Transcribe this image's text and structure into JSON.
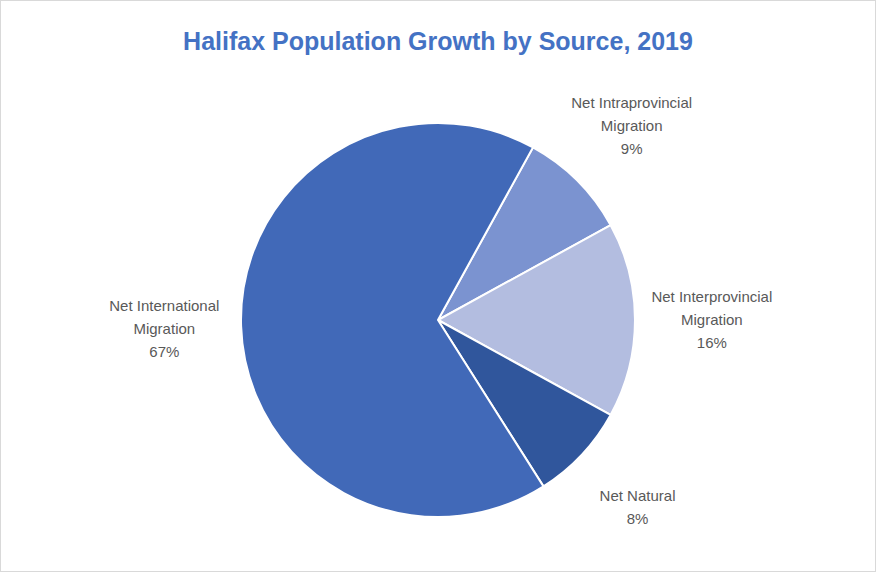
{
  "chart_data": {
    "type": "pie",
    "title": "Halifax Population Growth by Source, 2019",
    "categories": [
      "Net Intraprovincial Migration",
      "Net Interprovincial Migration",
      "Net Natural",
      "Net International Migration"
    ],
    "values": [
      9,
      16,
      8,
      67
    ],
    "value_labels": [
      "9%",
      "16%",
      "8%",
      "67%"
    ],
    "colors": [
      "#7b93d0",
      "#b3bde0",
      "#30569c",
      "#4169b8"
    ],
    "data_labels": true
  }
}
